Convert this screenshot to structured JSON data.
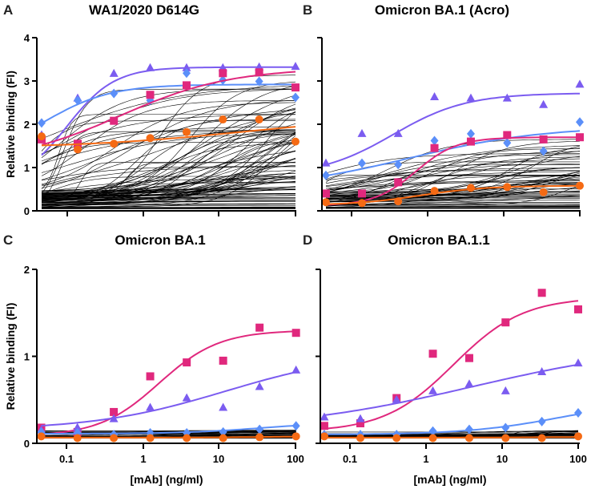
{
  "colors": {
    "purple": "#7b5cf0",
    "blue": "#5b8ff9",
    "pink": "#e0287d",
    "orange": "#f56a14",
    "background": "#000000"
  },
  "chart_data": [
    {
      "panel": "A",
      "title": "WA1/2020 D614G",
      "type": "line",
      "xlabel": "",
      "ylabel": "Relative binding (FI)",
      "xscale": "log",
      "xlim": [
        0.046,
        100
      ],
      "ylim": [
        0,
        4
      ],
      "yticks": [
        "0",
        "1",
        "2",
        "3",
        "4"
      ],
      "show_ytick_labels": true,
      "show_xtick_labels": false,
      "x": [
        0.046,
        0.137,
        0.41,
        1.23,
        3.7,
        11.1,
        33.3,
        100
      ],
      "background_curves": {
        "count": 110,
        "range": [
          0.05,
          3.2
        ]
      },
      "series": [
        {
          "name": "purple",
          "marker": "triangle",
          "values": [
            1.75,
            2.6,
            3.17,
            3.3,
            3.3,
            3.3,
            3.32,
            3.33
          ],
          "fit": {
            "bottom": 0.6,
            "top": 3.32,
            "ec50": 0.1,
            "hill": 1.4
          }
        },
        {
          "name": "blue",
          "marker": "diamond",
          "values": [
            2.03,
            2.55,
            2.71,
            2.55,
            3.18,
            3.02,
            2.99,
            2.62
          ],
          "fit": {
            "bottom": 1.2,
            "top": 2.92,
            "ec50": 0.05,
            "hill": 1.0
          }
        },
        {
          "name": "pink",
          "marker": "square",
          "values": [
            1.65,
            1.55,
            2.08,
            2.68,
            2.9,
            3.18,
            3.2,
            2.85
          ],
          "fit": {
            "bottom": 1.1,
            "top": 3.3,
            "ec50": 0.5,
            "hill": 0.6
          }
        },
        {
          "name": "orange",
          "marker": "circle",
          "values": [
            1.72,
            1.42,
            1.55,
            1.68,
            1.82,
            2.11,
            2.11,
            1.6
          ],
          "fit": {
            "bottom": 1.45,
            "top": 2.2,
            "ec50": 20,
            "hill": 0.4
          }
        }
      ]
    },
    {
      "panel": "B",
      "title": "Omicron BA.1 (Acro)",
      "type": "line",
      "xlabel": "",
      "ylabel": "",
      "xscale": "log",
      "xlim": [
        0.046,
        100
      ],
      "ylim": [
        0,
        4
      ],
      "yticks": [
        "0",
        "1",
        "2",
        "3",
        "4"
      ],
      "show_ytick_labels": false,
      "show_xtick_labels": false,
      "x": [
        0.046,
        0.137,
        0.41,
        1.23,
        3.7,
        11.1,
        33.3,
        100
      ],
      "background_curves": {
        "count": 70,
        "range": [
          0.05,
          1.7
        ]
      },
      "series": [
        {
          "name": "purple",
          "marker": "triangle",
          "values": [
            1.1,
            1.78,
            1.78,
            2.63,
            2.6,
            2.6,
            2.45,
            2.92
          ],
          "fit": {
            "bottom": 0.8,
            "top": 2.72,
            "ec50": 0.35,
            "hill": 0.9
          }
        },
        {
          "name": "blue",
          "marker": "diamond",
          "values": [
            0.82,
            1.1,
            1.07,
            1.62,
            1.78,
            1.57,
            1.38,
            2.05
          ],
          "fit": {
            "bottom": 0.5,
            "top": 1.95,
            "ec50": 0.6,
            "hill": 0.5
          }
        },
        {
          "name": "pink",
          "marker": "square",
          "values": [
            0.4,
            0.4,
            0.66,
            1.45,
            1.6,
            1.75,
            1.65,
            1.7
          ],
          "fit": {
            "bottom": 0.12,
            "top": 1.7,
            "ec50": 0.7,
            "hill": 1.6
          }
        },
        {
          "name": "orange",
          "marker": "circle",
          "values": [
            0.2,
            0.18,
            0.22,
            0.46,
            0.53,
            0.55,
            0.43,
            0.58
          ],
          "fit": {
            "bottom": 0.13,
            "top": 0.58,
            "ec50": 0.8,
            "hill": 1.0
          }
        }
      ]
    },
    {
      "panel": "C",
      "title": "Omicron BA.1",
      "type": "line",
      "xlabel": "[mAb] (ng/ml)",
      "ylabel": "Relative binding (FI)",
      "xscale": "log",
      "xlim": [
        0.046,
        100
      ],
      "ylim": [
        0,
        2
      ],
      "yticks": [
        "0",
        "1",
        "2"
      ],
      "show_ytick_labels": true,
      "show_xtick_labels": true,
      "xticks": [
        "0.1",
        "1",
        "10",
        "100"
      ],
      "x": [
        0.046,
        0.137,
        0.41,
        1.23,
        3.7,
        11.1,
        33.3,
        100
      ],
      "background_curves": {
        "count": 40,
        "range": [
          0.06,
          0.16
        ]
      },
      "series": [
        {
          "name": "pink",
          "marker": "square",
          "values": [
            0.18,
            0.13,
            0.36,
            0.77,
            0.93,
            0.95,
            1.33,
            1.27
          ],
          "fit": {
            "bottom": 0.08,
            "top": 1.3,
            "ec50": 1.6,
            "hill": 1.1
          }
        },
        {
          "name": "purple",
          "marker": "triangle",
          "values": [
            0.15,
            0.18,
            0.28,
            0.41,
            0.52,
            0.41,
            0.65,
            0.84
          ],
          "fit": {
            "bottom": 0.15,
            "top": 1.05,
            "ec50": 12,
            "hill": 0.5
          }
        },
        {
          "name": "blue",
          "marker": "diamond",
          "values": [
            0.13,
            0.12,
            0.1,
            0.12,
            0.12,
            0.13,
            0.16,
            0.2
          ],
          "fit": {
            "bottom": 0.11,
            "top": 0.25,
            "ec50": 40,
            "hill": 0.8
          }
        },
        {
          "name": "orange",
          "marker": "circle",
          "values": [
            0.08,
            0.06,
            0.06,
            0.06,
            0.06,
            0.06,
            0.07,
            0.08
          ],
          "fit": {
            "bottom": 0.065,
            "top": 0.08,
            "ec50": 30,
            "hill": 1.0
          }
        }
      ]
    },
    {
      "panel": "D",
      "title": "Omicron BA.1.1",
      "type": "line",
      "xlabel": "[mAb] (ng/ml)",
      "ylabel": "",
      "xscale": "log",
      "xlim": [
        0.046,
        100
      ],
      "ylim": [
        0,
        2
      ],
      "yticks": [
        "0",
        "1",
        "2"
      ],
      "show_ytick_labels": false,
      "show_xtick_labels": true,
      "xticks": [
        "0.1",
        "1",
        "10",
        "100"
      ],
      "x": [
        0.046,
        0.137,
        0.41,
        1.23,
        3.7,
        11.1,
        33.3,
        100
      ],
      "background_curves": {
        "count": 40,
        "range": [
          0.06,
          0.16
        ]
      },
      "series": [
        {
          "name": "pink",
          "marker": "square",
          "values": [
            0.2,
            0.23,
            0.52,
            1.03,
            0.98,
            1.39,
            1.73,
            1.54
          ],
          "fit": {
            "bottom": 0.13,
            "top": 1.68,
            "ec50": 2.3,
            "hill": 0.95
          }
        },
        {
          "name": "purple",
          "marker": "triangle",
          "values": [
            0.3,
            0.28,
            0.5,
            0.6,
            0.68,
            0.6,
            0.82,
            0.92
          ],
          "fit": {
            "bottom": 0.15,
            "top": 1.15,
            "ec50": 4,
            "hill": 0.35
          }
        },
        {
          "name": "blue",
          "marker": "diamond",
          "values": [
            0.1,
            0.1,
            0.1,
            0.14,
            0.16,
            0.18,
            0.25,
            0.35
          ],
          "fit": {
            "bottom": 0.1,
            "top": 0.5,
            "ec50": 60,
            "hill": 0.7
          }
        },
        {
          "name": "orange",
          "marker": "circle",
          "values": [
            0.08,
            0.06,
            0.06,
            0.06,
            0.06,
            0.06,
            0.06,
            0.08
          ],
          "fit": {
            "bottom": 0.065,
            "top": 0.075,
            "ec50": 30,
            "hill": 1.0
          }
        }
      ]
    }
  ]
}
